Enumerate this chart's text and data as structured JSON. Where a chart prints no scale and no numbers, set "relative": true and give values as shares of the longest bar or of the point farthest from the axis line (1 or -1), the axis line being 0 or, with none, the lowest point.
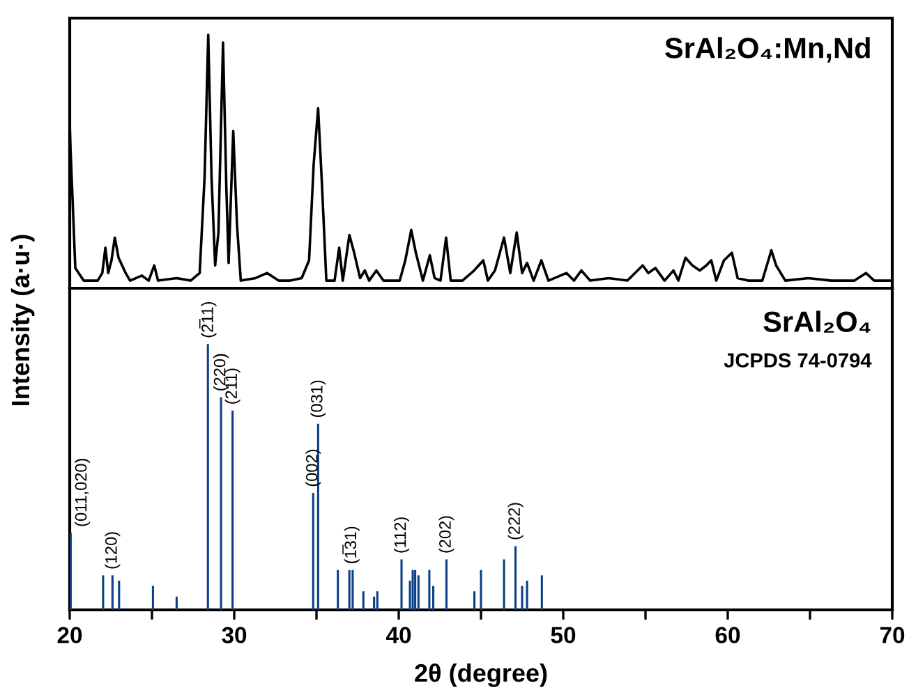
{
  "chart_data": [
    {
      "type": "line",
      "relative": true,
      "ylabel": "Intensity (a·u·)",
      "tick_labels": false,
      "xlim": [
        20,
        70
      ],
      "xticks": [
        20,
        {
          "value": 25,
          "label": null
        },
        30,
        {
          "value": 35,
          "label": null
        },
        40,
        {
          "value": 45,
          "label": null
        },
        50,
        {
          "value": 55,
          "label": null
        },
        60,
        {
          "value": 65,
          "label": null
        },
        70
      ],
      "series": [
        {
          "name": "SrAl₂O₄:Mn,Nd",
          "color": "#000000",
          "x": [
            20.0,
            20.05,
            20.34,
            20.85,
            21.7,
            21.98,
            22.17,
            22.34,
            22.54,
            22.74,
            22.97,
            23.4,
            23.67,
            24.38,
            24.8,
            25.14,
            25.37,
            26.5,
            27.35,
            27.9,
            28.2,
            28.42,
            28.62,
            28.84,
            29.04,
            29.32,
            29.52,
            29.66,
            29.94,
            30.17,
            30.4,
            31.3,
            32.0,
            32.7,
            33.4,
            34.1,
            34.55,
            34.83,
            35.1,
            35.34,
            35.6,
            36.1,
            36.38,
            36.6,
            37.0,
            37.29,
            37.65,
            37.94,
            38.2,
            38.64,
            39.07,
            40.06,
            40.4,
            40.76,
            41.04,
            41.47,
            41.89,
            42.18,
            42.54,
            42.88,
            43.16,
            43.87,
            44.58,
            45.14,
            45.42,
            45.85,
            46.4,
            46.78,
            47.17,
            47.5,
            47.8,
            48.2,
            48.67,
            49.1,
            50.2,
            50.65,
            51.1,
            51.64,
            52.77,
            53.9,
            54.83,
            55.17,
            55.6,
            56.16,
            56.7,
            57.0,
            57.43,
            57.85,
            58.3,
            58.7,
            59.0,
            59.3,
            59.77,
            60.25,
            60.6,
            61.24,
            62.1,
            62.65,
            62.94,
            63.5,
            64.9,
            66.3,
            67.7,
            68.4,
            68.9,
            69.9
          ],
          "values": [
            0.65,
            0.55,
            0.08,
            0.03,
            0.03,
            0.06,
            0.16,
            0.06,
            0.11,
            0.2,
            0.12,
            0.06,
            0.03,
            0.05,
            0.03,
            0.09,
            0.03,
            0.04,
            0.03,
            0.06,
            0.44,
            1.0,
            0.44,
            0.09,
            0.22,
            0.97,
            0.4,
            0.1,
            0.62,
            0.25,
            0.03,
            0.04,
            0.06,
            0.03,
            0.03,
            0.04,
            0.11,
            0.49,
            0.71,
            0.4,
            0.03,
            0.03,
            0.16,
            0.03,
            0.21,
            0.14,
            0.04,
            0.07,
            0.03,
            0.07,
            0.03,
            0.03,
            0.11,
            0.23,
            0.14,
            0.03,
            0.13,
            0.04,
            0.03,
            0.2,
            0.03,
            0.03,
            0.07,
            0.11,
            0.03,
            0.07,
            0.2,
            0.06,
            0.22,
            0.06,
            0.1,
            0.03,
            0.11,
            0.03,
            0.06,
            0.03,
            0.07,
            0.03,
            0.04,
            0.03,
            0.09,
            0.06,
            0.08,
            0.03,
            0.07,
            0.03,
            0.12,
            0.09,
            0.07,
            0.09,
            0.11,
            0.03,
            0.11,
            0.14,
            0.04,
            0.03,
            0.03,
            0.15,
            0.09,
            0.03,
            0.04,
            0.03,
            0.03,
            0.06,
            0.03,
            0.03
          ]
        }
      ]
    },
    {
      "type": "bar",
      "relative": true,
      "xlabel": "2θ (degree)",
      "xlim": [
        20,
        70
      ],
      "xticks": [
        20,
        {
          "value": 25,
          "label": null
        },
        30,
        {
          "value": 35,
          "label": null
        },
        40,
        {
          "value": 45,
          "label": null
        },
        50,
        {
          "value": 55,
          "label": null
        },
        60,
        {
          "value": 65,
          "label": null
        },
        70
      ],
      "annotations": [
        "JCPDS 74-0794",
        {
          "text": "(011,020)",
          "x": 20.06,
          "y": 0.29
        },
        {
          "text": "(120)",
          "x": 22.6,
          "y": 0.13
        },
        {
          "text": "(2̅11)",
          "x": 28.4,
          "y": 1.0
        },
        {
          "text": "(220)",
          "x": 29.2,
          "y": 0.8
        },
        {
          "text": "(211)",
          "x": 29.9,
          "y": 0.75
        },
        {
          "text": "(002)",
          "x": 34.8,
          "y": 0.44
        },
        {
          "text": "(031)",
          "x": 35.1,
          "y": 0.7
        },
        {
          "text": "(1̅31)",
          "x": 37.1,
          "y": 0.15
        },
        {
          "text": "(112)",
          "x": 40.17,
          "y": 0.19
        },
        {
          "text": "(202)",
          "x": 42.9,
          "y": 0.19
        },
        {
          "text": "(222)",
          "x": 47.1,
          "y": 0.24
        }
      ],
      "series": [
        {
          "name": "SrAl₂O₄",
          "color": "#0a3f85",
          "x": [
            20.06,
            22.03,
            22.6,
            23.0,
            25.06,
            26.5,
            28.4,
            29.2,
            29.9,
            34.8,
            35.1,
            36.3,
            37.0,
            37.2,
            37.85,
            38.5,
            38.7,
            40.17,
            40.68,
            40.85,
            41.0,
            41.2,
            41.86,
            42.1,
            42.9,
            44.6,
            45.0,
            46.4,
            47.1,
            47.5,
            47.8,
            48.7
          ],
          "values": [
            0.29,
            0.13,
            0.13,
            0.11,
            0.09,
            0.05,
            1.0,
            0.8,
            0.75,
            0.44,
            0.7,
            0.15,
            0.15,
            0.15,
            0.07,
            0.05,
            0.07,
            0.19,
            0.11,
            0.15,
            0.15,
            0.13,
            0.15,
            0.09,
            0.19,
            0.07,
            0.15,
            0.19,
            0.24,
            0.09,
            0.11,
            0.13
          ]
        }
      ]
    }
  ]
}
